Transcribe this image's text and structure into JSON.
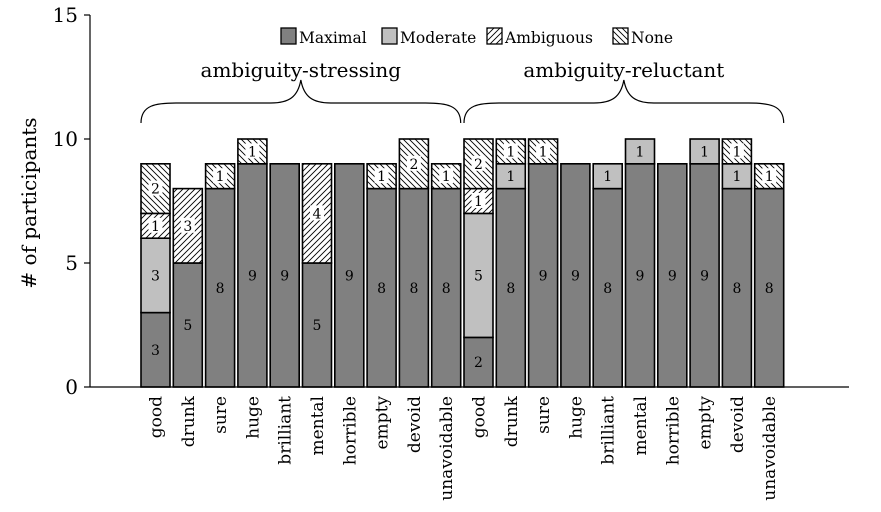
{
  "chart_data": {
    "type": "bar",
    "stacked": true,
    "ylabel": "# of participants",
    "ylim": [
      0,
      15
    ],
    "yticks": [
      0,
      5,
      10,
      15
    ],
    "grid": false,
    "legend_position": "top-center",
    "groups": [
      {
        "label": "ambiguity-stressing",
        "start": 0,
        "end": 9
      },
      {
        "label": "ambiguity-reluctant",
        "start": 10,
        "end": 19
      }
    ],
    "categories": [
      "good",
      "drunk",
      "sure",
      "huge",
      "brilliant",
      "mental",
      "horrible",
      "empty",
      "devoid",
      "unavoidable",
      "good",
      "drunk",
      "sure",
      "huge",
      "brilliant",
      "mental",
      "horrible",
      "empty",
      "devoid",
      "unavoidable"
    ],
    "series": [
      {
        "name": "Maximal",
        "pattern": "solid-dark",
        "color": "#808080",
        "values": [
          3,
          5,
          8,
          9,
          9,
          5,
          9,
          8,
          8,
          8,
          2,
          8,
          9,
          9,
          8,
          9,
          9,
          9,
          8,
          8
        ]
      },
      {
        "name": "Moderate",
        "pattern": "solid-light",
        "color": "#c0c0c0",
        "values": [
          3,
          0,
          0,
          0,
          0,
          0,
          0,
          0,
          0,
          0,
          5,
          1,
          0,
          0,
          1,
          1,
          0,
          1,
          1,
          0
        ]
      },
      {
        "name": "Ambiguous",
        "pattern": "north-east-lines",
        "color": "#ffffff",
        "values": [
          1,
          3,
          0,
          0,
          0,
          4,
          0,
          0,
          0,
          0,
          1,
          0,
          0,
          0,
          0,
          0,
          0,
          0,
          0,
          0
        ]
      },
      {
        "name": "None",
        "pattern": "north-west-lines",
        "color": "#ffffff",
        "values": [
          2,
          0,
          1,
          1,
          0,
          0,
          0,
          1,
          2,
          1,
          2,
          1,
          1,
          0,
          0,
          0,
          0,
          0,
          1,
          1
        ]
      }
    ]
  }
}
